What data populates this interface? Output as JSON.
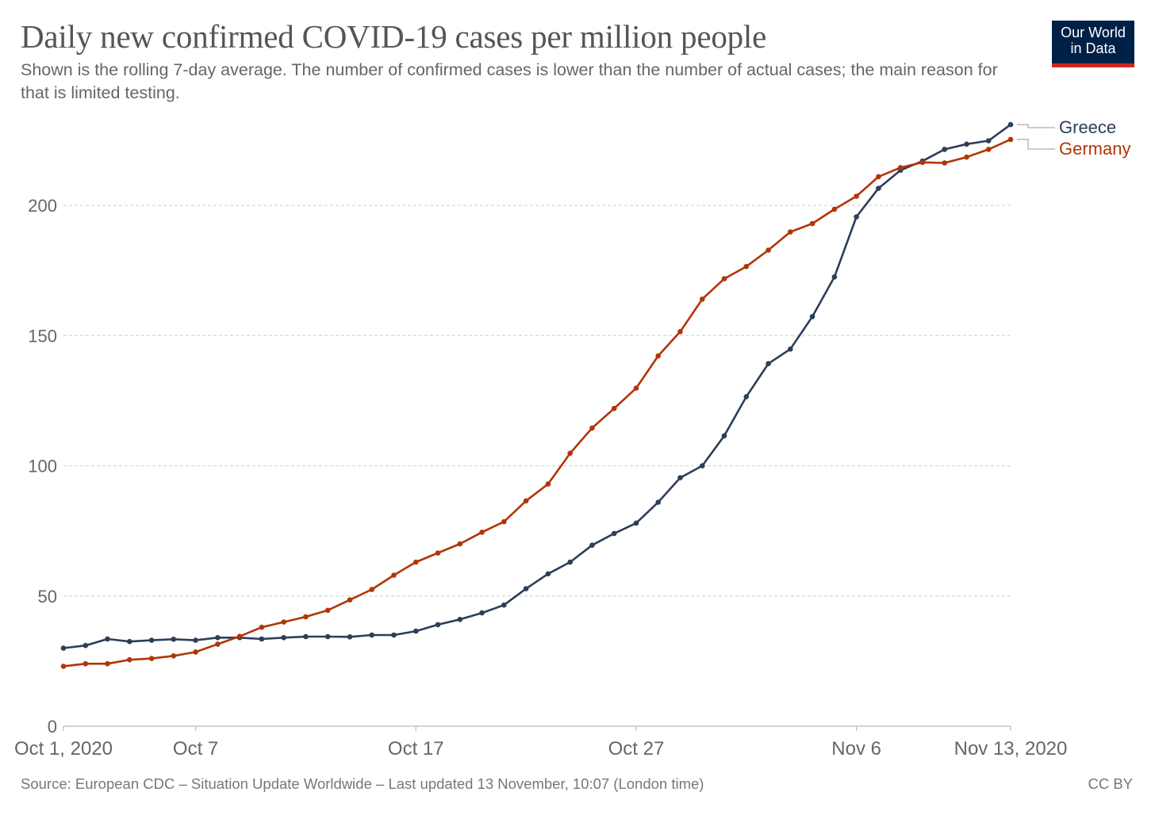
{
  "title": "Daily new confirmed COVID-19 cases per million people",
  "subtitle": "Shown is the rolling 7-day average. The number of confirmed cases is lower than the number of actual cases; the main reason for that is limited testing.",
  "logo": {
    "line1": "Our World",
    "line2": "in Data",
    "color": "#002147",
    "accent": "#ce261e"
  },
  "source": "Source: European CDC – Situation Update Worldwide – Last updated 13 November, 10:07 (London time)",
  "license": "CC BY",
  "chart_data": {
    "type": "line",
    "title": "Daily new confirmed COVID-19 cases per million people",
    "xlabel": "",
    "ylabel": "",
    "x_range": [
      "2020-10-01",
      "2020-11-13"
    ],
    "ylim": [
      0,
      230
    ],
    "y_ticks": [
      0,
      50,
      100,
      150,
      200
    ],
    "x_ticks": [
      {
        "date": "2020-10-01",
        "label": "Oct 1, 2020"
      },
      {
        "date": "2020-10-07",
        "label": "Oct 7"
      },
      {
        "date": "2020-10-17",
        "label": "Oct 17"
      },
      {
        "date": "2020-10-27",
        "label": "Oct 27"
      },
      {
        "date": "2020-11-06",
        "label": "Nov 6"
      },
      {
        "date": "2020-11-13",
        "label": "Nov 13, 2020"
      }
    ],
    "grid": "horizontal dashed",
    "legend": "right, at line ends",
    "x": [
      "2020-10-01",
      "2020-10-02",
      "2020-10-03",
      "2020-10-04",
      "2020-10-05",
      "2020-10-06",
      "2020-10-07",
      "2020-10-08",
      "2020-10-09",
      "2020-10-10",
      "2020-10-11",
      "2020-10-12",
      "2020-10-13",
      "2020-10-14",
      "2020-10-15",
      "2020-10-16",
      "2020-10-17",
      "2020-10-18",
      "2020-10-19",
      "2020-10-20",
      "2020-10-21",
      "2020-10-22",
      "2020-10-23",
      "2020-10-24",
      "2020-10-25",
      "2020-10-26",
      "2020-10-27",
      "2020-10-28",
      "2020-10-29",
      "2020-10-30",
      "2020-10-31",
      "2020-11-01",
      "2020-11-02",
      "2020-11-03",
      "2020-11-04",
      "2020-11-05",
      "2020-11-06",
      "2020-11-07",
      "2020-11-08",
      "2020-11-09",
      "2020-11-10",
      "2020-11-11",
      "2020-11-12",
      "2020-11-13"
    ],
    "series": [
      {
        "name": "Greece",
        "color": "#2d3e58",
        "values": [
          30.0,
          31.0,
          33.5,
          32.5,
          33.0,
          33.4,
          33.0,
          34.0,
          34.0,
          33.5,
          34.0,
          34.4,
          34.4,
          34.3,
          35.0,
          35.0,
          36.5,
          39.0,
          41.0,
          43.5,
          46.5,
          52.8,
          58.5,
          63.0,
          69.5,
          74.0,
          78.0,
          86.0,
          95.4,
          100.0,
          111.5,
          126.5,
          139.2,
          144.8,
          157.3,
          172.5,
          195.6,
          206.5,
          213.5,
          217.0,
          221.5,
          223.5,
          224.8,
          231.0
        ]
      },
      {
        "name": "Germany",
        "color": "#b13507",
        "values": [
          23.0,
          24.0,
          24.0,
          25.5,
          26.0,
          27.0,
          28.5,
          31.5,
          34.5,
          38.0,
          40.0,
          42.0,
          44.5,
          48.5,
          52.5,
          58.0,
          63.0,
          66.5,
          70.0,
          74.5,
          78.5,
          86.5,
          93.0,
          104.8,
          114.5,
          122.0,
          129.8,
          142.2,
          151.5,
          164.0,
          171.8,
          176.5,
          182.8,
          189.8,
          193.0,
          198.5,
          203.5,
          211.0,
          214.5,
          216.5,
          216.3,
          218.5,
          221.5,
          225.3
        ]
      }
    ]
  }
}
